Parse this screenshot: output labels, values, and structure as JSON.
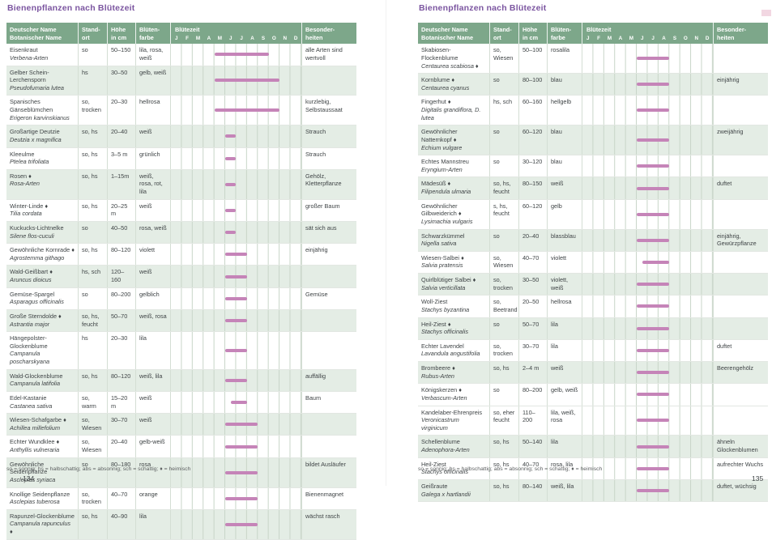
{
  "colors": {
    "header_green": "#7da78a",
    "row_green": "#e4ede5",
    "bar_pink": "#c584b8",
    "title_purple": "#7b55a0",
    "tab_pink": "#f2d7e2"
  },
  "legend": "so = sonnig; hs = halbschattig; abs = absonnig; sch = schattig; ♦ = heimisch",
  "months": [
    "J",
    "F",
    "M",
    "A",
    "M",
    "J",
    "J",
    "A",
    "S",
    "O",
    "N",
    "D"
  ],
  "table_header": {
    "name": "Deutscher Name\nBotanischer Name",
    "standort": "Stand-\nort",
    "hoehe": "Höhe\nin cm",
    "farbe": "Blüten-\nfarbe",
    "bluetezeit": "Blütezeit",
    "besonderheiten": "Besonder-\nheiten"
  },
  "bloom_scale_note": "bloom = [start,end] on 0–12 month axis, Jan=0 … Dec=12",
  "pages": [
    {
      "title": "Bienenpflanzen nach Blütezeit",
      "page_number": "134",
      "rows": [
        {
          "de": "Eisenkraut",
          "bot": "Verbena-Arten",
          "ort": "so",
          "hoehe": "50–150",
          "farbe": "lila, rosa, weiß",
          "bloom": [
            4,
            9
          ],
          "info": "alle Arten sind wertvoll",
          "shade": false
        },
        {
          "de": "Gelber Schein-Lerchensporn",
          "bot": "Pseudofumaria lutea",
          "ort": "hs",
          "hoehe": "30–50",
          "farbe": "gelb, weiß",
          "bloom": [
            4,
            10
          ],
          "info": "",
          "shade": true
        },
        {
          "de": "Spanisches Gänseblümchen",
          "bot": "Erigeron karvinskianus",
          "ort": "so, trocken",
          "hoehe": "20–30",
          "farbe": "hellrosa",
          "bloom": [
            4,
            10
          ],
          "info": "kurzlebig, Selbstaussaat",
          "shade": false
        },
        {
          "de": "Großartige Deutzie",
          "bot": "Deutzia x magnifica",
          "ort": "so, hs",
          "hoehe": "20–40",
          "farbe": "weiß",
          "bloom": [
            5,
            6
          ],
          "info": "Strauch",
          "shade": true
        },
        {
          "de": "Kleeulme",
          "bot": "Ptelea trifoliata",
          "ort": "so, hs",
          "hoehe": "3–5 m",
          "farbe": "grünlich",
          "bloom": [
            5,
            6
          ],
          "info": "Strauch",
          "shade": false
        },
        {
          "de": "Rosen ♦",
          "bot": "Rosa-Arten",
          "ort": "so, hs",
          "hoehe": "1–15m",
          "farbe": "weiß, rosa, rot, lila",
          "bloom": [
            5,
            6
          ],
          "info": "Gehölz, Kletterpflanze",
          "shade": true
        },
        {
          "de": "Winter-Linde ♦",
          "bot": "Tilia cordata",
          "ort": "so, hs",
          "hoehe": "20–25 m",
          "farbe": "weiß",
          "bloom": [
            5,
            6
          ],
          "info": "großer Baum",
          "shade": false
        },
        {
          "de": "Kuckucks-Lichtnelke",
          "bot": "Silene flos-cuculi",
          "ort": "so",
          "hoehe": "40–50",
          "farbe": "rosa, weiß",
          "bloom": [
            5,
            6
          ],
          "info": "sät sich aus",
          "shade": true
        },
        {
          "de": "Gewöhnliche Kornrade ♦",
          "bot": "Agrostemma githago",
          "ort": "so, hs",
          "hoehe": "80–120",
          "farbe": "violett",
          "bloom": [
            5,
            7
          ],
          "info": "einjährig",
          "shade": false
        },
        {
          "de": "Wald-Geißbart ♦",
          "bot": "Aruncus dioicus",
          "ort": "hs, sch",
          "hoehe": "120–160",
          "farbe": "weiß",
          "bloom": [
            5,
            7
          ],
          "info": "",
          "shade": true
        },
        {
          "de": "Gemüse-Spargel",
          "bot": "Asparagus officinalis",
          "ort": "so",
          "hoehe": "80–200",
          "farbe": "gelblich",
          "bloom": [
            5,
            7
          ],
          "info": "Gemüse",
          "shade": false
        },
        {
          "de": "Große Sterndolde ♦",
          "bot": "Astrantia major",
          "ort": "so, hs, feucht",
          "hoehe": "50–70",
          "farbe": "weiß, rosa",
          "bloom": [
            5,
            7
          ],
          "info": "",
          "shade": true
        },
        {
          "de": "Hängepolster-Glockenblume",
          "bot": "Campanula poscharskyana",
          "ort": "hs",
          "hoehe": "20–30",
          "farbe": "lila",
          "bloom": [
            5,
            7
          ],
          "info": "",
          "shade": false
        },
        {
          "de": "Wald-Glockenblume",
          "bot": "Campanula latifolia",
          "ort": "so, hs",
          "hoehe": "80–120",
          "farbe": "weiß, lila",
          "bloom": [
            5,
            7
          ],
          "info": "auffällig",
          "shade": true
        },
        {
          "de": "Edel-Kastanie",
          "bot": "Castanea sativa",
          "ort": "so, warm",
          "hoehe": "15–20 m",
          "farbe": "weiß",
          "bloom": [
            5.5,
            7
          ],
          "info": "Baum",
          "shade": false
        },
        {
          "de": "Wiesen-Schafgarbe ♦",
          "bot": "Achillea millefolium",
          "ort": "so, Wiesen",
          "hoehe": "30–70",
          "farbe": "weiß",
          "bloom": [
            5,
            8
          ],
          "info": "",
          "shade": true
        },
        {
          "de": "Echter Wundklee ♦",
          "bot": "Anthyllis vulneraria",
          "ort": "so, Wiesen",
          "hoehe": "20–40",
          "farbe": "gelb-weiß",
          "bloom": [
            5,
            8
          ],
          "info": "",
          "shade": false
        },
        {
          "de": "Gewöhnliche Seidenpflanze",
          "bot": "Asclepias syriaca",
          "ort": "so",
          "hoehe": "80–180",
          "farbe": "rosa",
          "bloom": [
            5,
            8
          ],
          "info": "bildet Ausläufer",
          "shade": true
        },
        {
          "de": "Knollige Seidenpflanze",
          "bot": "Asclepias tuberosa",
          "ort": "so, trocken",
          "hoehe": "40–70",
          "farbe": "orange",
          "bloom": [
            5,
            8
          ],
          "info": "Bienenmagnet",
          "shade": false
        },
        {
          "de": "Rapunzel-Glockenblume",
          "bot": "Campanula rapunculus ♦",
          "ort": "so, hs",
          "hoehe": "40–90",
          "farbe": "lila",
          "bloom": [
            5,
            8
          ],
          "info": "wächst rasch",
          "shade": true
        }
      ]
    },
    {
      "title": "Bienenpflanzen nach Blütezeit",
      "page_number": "135",
      "rows": [
        {
          "de": "Skabiosen-Flockenblume",
          "bot": "Centaurea scabiosa ♦",
          "ort": "so, Wiesen",
          "hoehe": "50–100",
          "farbe": "rosalila",
          "bloom": [
            5,
            8
          ],
          "info": "",
          "shade": false
        },
        {
          "de": "Kornblume ♦",
          "bot": "Centaurea cyanus",
          "ort": "so",
          "hoehe": "80–100",
          "farbe": "blau",
          "bloom": [
            5,
            8
          ],
          "info": "einjährig",
          "shade": true
        },
        {
          "de": "Fingerhut ♦",
          "bot": "Digitalis grandiflora, D. lutea",
          "ort": "hs, sch",
          "hoehe": "60–160",
          "farbe": "hellgelb",
          "bloom": [
            5,
            8
          ],
          "info": "",
          "shade": false
        },
        {
          "de": "Gewöhnlicher Natternkopf ♦",
          "bot": "Echium vulgare",
          "ort": "so",
          "hoehe": "60–120",
          "farbe": "blau",
          "bloom": [
            5,
            8
          ],
          "info": "zweijährig",
          "shade": true
        },
        {
          "de": "Echtes Mannstreu",
          "bot": "Eryngium-Arten",
          "ort": "so",
          "hoehe": "30–120",
          "farbe": "blau",
          "bloom": [
            5,
            8
          ],
          "info": "",
          "shade": false
        },
        {
          "de": "Mädesüß ♦",
          "bot": "Filipendula ulmaria",
          "ort": "so, hs, feucht",
          "hoehe": "80–150",
          "farbe": "weiß",
          "bloom": [
            5,
            8
          ],
          "info": "duftet",
          "shade": true
        },
        {
          "de": "Gewöhnlicher Gilbweiderich ♦",
          "bot": "Lysimachia vulgaris",
          "ort": "s, hs, feucht",
          "hoehe": "60–120",
          "farbe": "gelb",
          "bloom": [
            5,
            8
          ],
          "info": "",
          "shade": false
        },
        {
          "de": "Schwarzkümmel",
          "bot": "Nigella sativa",
          "ort": "so",
          "hoehe": "20–40",
          "farbe": "blassblau",
          "bloom": [
            5,
            8
          ],
          "info": "einjährig, Gewürzpflanze",
          "shade": true
        },
        {
          "de": "Wiesen-Salbei ♦",
          "bot": "Salvia pratensis",
          "ort": "so, Wiesen",
          "hoehe": "40–70",
          "farbe": "violett",
          "bloom": [
            5.5,
            8
          ],
          "info": "",
          "shade": false
        },
        {
          "de": "Quirlblütiger Salbei ♦",
          "bot": "Salvia verticillata",
          "ort": "so, trocken",
          "hoehe": "30–50",
          "farbe": "violett, weiß",
          "bloom": [
            5,
            8
          ],
          "info": "",
          "shade": true
        },
        {
          "de": "Woll-Ziest",
          "bot": "Stachys byzantina",
          "ort": "so, Beetrand",
          "hoehe": "20–50",
          "farbe": "hellrosa",
          "bloom": [
            5,
            8
          ],
          "info": "",
          "shade": false
        },
        {
          "de": "Heil-Ziest ♦",
          "bot": "Stachys officinalis",
          "ort": "so",
          "hoehe": "50–70",
          "farbe": "lila",
          "bloom": [
            5,
            8
          ],
          "info": "",
          "shade": true
        },
        {
          "de": "Echter Lavendel",
          "bot": "Lavandula angustifolia",
          "ort": "so, trocken",
          "hoehe": "30–70",
          "farbe": "lila",
          "bloom": [
            5,
            8
          ],
          "info": "duftet",
          "shade": false
        },
        {
          "de": "Brombeere ♦",
          "bot": "Rubus-Arten",
          "ort": "so, hs",
          "hoehe": "2–4 m",
          "farbe": "weiß",
          "bloom": [
            5,
            8
          ],
          "info": "Beerengehölz",
          "shade": true
        },
        {
          "de": "Königskerzen ♦",
          "bot": "Verbascum-Arten",
          "ort": "so",
          "hoehe": "80–200",
          "farbe": "gelb, weiß",
          "bloom": [
            5,
            8
          ],
          "info": "",
          "shade": false
        },
        {
          "de": "Kandelaber-Ehrenpreis",
          "bot": "Veronicastrum virginicum",
          "ort": "so, eher feucht",
          "hoehe": "110–200",
          "farbe": "lila, weiß, rosa",
          "bloom": [
            5,
            8
          ],
          "info": "",
          "shade": false
        },
        {
          "de": "Schellenblume",
          "bot": "Adenophora-Arten",
          "ort": "so, hs",
          "hoehe": "50–140",
          "farbe": "lila",
          "bloom": [
            5,
            8
          ],
          "info": "ähneln Glockenblumen",
          "shade": true
        },
        {
          "de": "Heil-Ziest",
          "bot": "Stachys officinalis",
          "ort": "so, hs",
          "hoehe": "40–70",
          "farbe": "rosa, lila",
          "bloom": [
            5,
            8
          ],
          "info": "aufrechter Wuchs",
          "shade": false
        },
        {
          "de": "Geißraute",
          "bot": "Galega x hartlandii",
          "ort": "so, hs",
          "hoehe": "80–140",
          "farbe": "weiß, lila",
          "bloom": [
            5,
            8
          ],
          "info": "duftet, wüchsig",
          "shade": true
        }
      ]
    }
  ]
}
